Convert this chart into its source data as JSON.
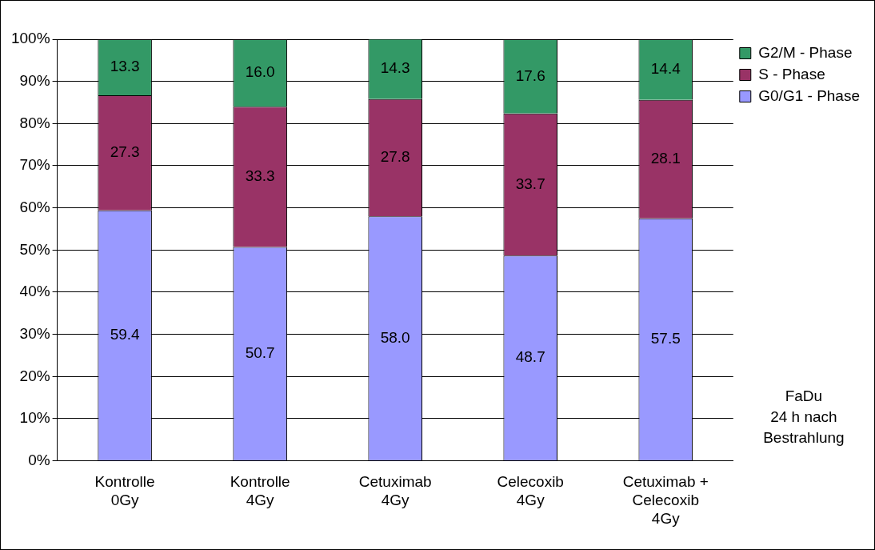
{
  "chart_data": {
    "type": "bar",
    "stacked": true,
    "categories": [
      "Kontrolle\n0Gy",
      "Kontrolle\n4Gy",
      "Cetuximab\n4Gy",
      "Celecoxib\n4Gy",
      "Cetuximab +\nCelecoxib\n4Gy"
    ],
    "series": [
      {
        "name": "G0/G1 - Phase",
        "color": "#9999ff",
        "values": [
          59.4,
          50.7,
          58.0,
          48.7,
          57.5
        ],
        "value_labels": [
          "59.4",
          "50.7",
          "58.0",
          "48.7",
          "57.5"
        ]
      },
      {
        "name": "S - Phase",
        "color": "#993366",
        "values": [
          27.3,
          33.3,
          27.8,
          33.7,
          28.1
        ],
        "value_labels": [
          "27.3",
          "33.3",
          "27.8",
          "33.7",
          "28.1"
        ]
      },
      {
        "name": "G2/M - Phase",
        "color": "#339966",
        "values": [
          13.3,
          16.0,
          14.3,
          17.6,
          14.4
        ],
        "value_labels": [
          "13.3",
          "16.0",
          "14.3",
          "17.6",
          "14.4"
        ]
      }
    ],
    "ylim": [
      0,
      100
    ],
    "yticks": [
      {
        "value": 0,
        "label": "0%"
      },
      {
        "value": 10,
        "label": "10%"
      },
      {
        "value": 20,
        "label": "20%"
      },
      {
        "value": 30,
        "label": "30%"
      },
      {
        "value": 40,
        "label": "40%"
      },
      {
        "value": 50,
        "label": "50%"
      },
      {
        "value": 60,
        "label": "60%"
      },
      {
        "value": 70,
        "label": "70%"
      },
      {
        "value": 80,
        "label": "80%"
      },
      {
        "value": 90,
        "label": "90%"
      },
      {
        "value": 100,
        "label": "100%"
      }
    ],
    "grid": "y",
    "legend": "top right",
    "annotations": [
      "FaDu\n24 h nach\nBestrahlung"
    ]
  }
}
